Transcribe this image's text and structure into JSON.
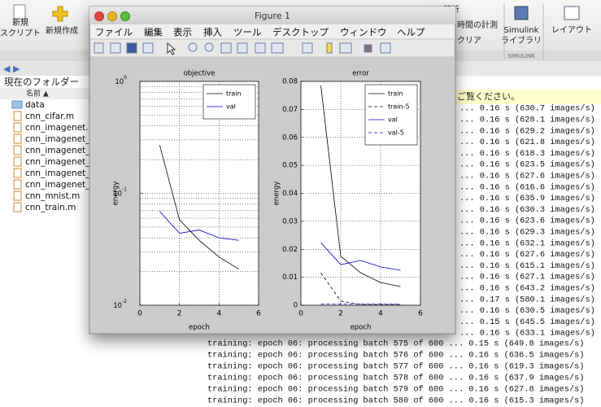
{
  "toolstrip": {
    "buttons": [
      {
        "lines": [
          "新規",
          "スクリプト"
        ]
      },
      {
        "lines": [
          "新規作成"
        ]
      },
      {
        "lines": [
          "コードの解析"
        ]
      },
      {
        "lines": [
          "時間の計測"
        ]
      },
      {
        "lines": [
          "クリア"
        ]
      },
      {
        "lines": [
          "Simulink",
          "ライブラリ"
        ]
      },
      {
        "lines": [
          "レイアウト"
        ]
      }
    ],
    "section": "SIMULINK"
  },
  "folder": {
    "title": "現在のフォルダー",
    "header": "名前 ▲",
    "files": [
      "data",
      "cnn_cifar.m",
      "cnn_imagenet.r",
      "cnn_imagenet_",
      "cnn_imagenet_",
      "cnn_imagenet_",
      "cnn_imagenet_",
      "cnn_imagenet_",
      "cnn_mnist.m",
      "cnn_train.m"
    ]
  },
  "console": {
    "notice": "ご覧ください。",
    "partial_lines": [
      "... 0.16 s (630.7 images/s)",
      "... 0.16 s (628.1 images/s)",
      "... 0.16 s (629.2 images/s)",
      "... 0.16 s (621.8 images/s)",
      "... 0.16 s (618.3 images/s)",
      "... 0.16 s (623.5 images/s)",
      "... 0.16 s (627.6 images/s)",
      "... 0.16 s (616.6 images/s)",
      "... 0.16 s (635.9 images/s)",
      "... 0.16 s (630.3 images/s)",
      "... 0.16 s (623.6 images/s)",
      "... 0.16 s (629.3 images/s)",
      "... 0.16 s (632.1 images/s)",
      "... 0.16 s (627.6 images/s)",
      "... 0.16 s (615.1 images/s)",
      "... 0.16 s (627.1 images/s)",
      "... 0.16 s (643.2 images/s)",
      "... 0.17 s (580.1 images/s)",
      "... 0.16 s (630.5 images/s)",
      "... 0.15 s (645.5 images/s)",
      "... 0.16 s (633.1 images/s)"
    ],
    "lines": [
      "training: epoch 06: processing batch 575 of 600 ... 0.15 s (649.8 images/s)",
      "training: epoch 06: processing batch 576 of 600 ... 0.16 s (636.5 images/s)",
      "training: epoch 06: processing batch 577 of 600 ... 0.16 s (619.3 images/s)",
      "training: epoch 06: processing batch 578 of 600 ... 0.16 s (637.9 images/s)",
      "training: epoch 06: processing batch 579 of 600 ... 0.16 s (627.8 images/s)",
      "training: epoch 06: processing batch 580 of 600 ... 0.16 s (615.3 images/s)"
    ]
  },
  "figure": {
    "title": "Figure 1",
    "menu": [
      "ファイル",
      "編集",
      "表示",
      "挿入",
      "ツール",
      "デスクトップ",
      "ウィンドウ",
      "ヘルプ"
    ],
    "plots": [
      {
        "type": "line",
        "title": "objective",
        "xlabel": "epoch",
        "ylabel": "energy",
        "log_y": true,
        "grid": true,
        "legend": "upper right",
        "x": [
          1,
          2,
          3,
          4,
          5
        ],
        "xlim": [
          0,
          6
        ],
        "xticks": [
          0,
          2,
          4,
          6
        ],
        "ylim": [
          0.01,
          1
        ],
        "yticks": [
          {
            "value": 1,
            "label": "10",
            "exponent": "0"
          },
          {
            "value": 0.1,
            "label": "10",
            "exponent": "-1"
          },
          {
            "value": 0.01,
            "label": "10",
            "exponent": "-2"
          }
        ],
        "series": [
          {
            "name": "train",
            "color": "#000000",
            "dashed": false,
            "values": [
              0.27,
              0.058,
              0.038,
              0.027,
              0.021
            ]
          },
          {
            "name": "val",
            "color": "#0000cc",
            "dashed": false,
            "values": [
              0.069,
              0.044,
              0.047,
              0.04,
              0.038
            ]
          }
        ]
      },
      {
        "type": "line",
        "title": "error",
        "xlabel": "epoch",
        "ylabel": "energy",
        "log_y": false,
        "grid": true,
        "legend": "upper right",
        "x": [
          1,
          2,
          3,
          4,
          5
        ],
        "xlim": [
          0,
          6
        ],
        "xticks": [
          0,
          2,
          4,
          6
        ],
        "ylim": [
          0,
          0.08
        ],
        "yticks": [
          0,
          0.01,
          0.02,
          0.03,
          0.04,
          0.05,
          0.06,
          0.07,
          0.08
        ],
        "series": [
          {
            "name": "train",
            "color": "#000000",
            "dashed": false,
            "values": [
              0.0785,
              0.0175,
              0.0116,
              0.0081,
              0.0067
            ]
          },
          {
            "name": "train-5",
            "color": "#000000",
            "dashed": true,
            "values": [
              0.0116,
              0.0015,
              0.0003,
              0.0003,
              0.0003
            ]
          },
          {
            "name": "val",
            "color": "#0000cc",
            "dashed": false,
            "values": [
              0.0224,
              0.0145,
              0.016,
              0.0137,
              0.0125
            ]
          },
          {
            "name": "val-5",
            "color": "#0000cc",
            "dashed": true,
            "values": [
              0.0004,
              0.0004,
              0.0004,
              0.0004,
              0.0004
            ]
          }
        ]
      }
    ]
  }
}
